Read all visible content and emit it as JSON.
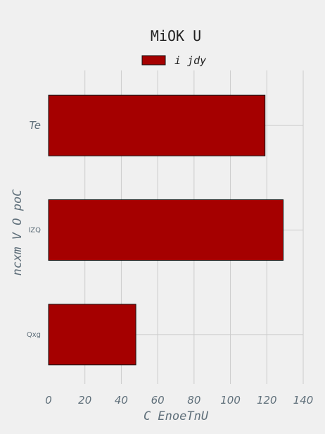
{
  "chart_data": {
    "type": "bar",
    "orientation": "horizontal",
    "title": "MiOK U",
    "xlabel": "C EnoeTnU",
    "ylabel": "ncxm V O poC",
    "categories": [
      "Te",
      "IZQ",
      "Qxg"
    ],
    "series": [
      {
        "name": "i jdy",
        "values": [
          119,
          129,
          48
        ],
        "color": "#a50000"
      }
    ],
    "xlim": [
      0,
      140
    ],
    "xticks": [
      "0",
      "20",
      "40",
      "60",
      "80",
      "100",
      "120",
      "140"
    ],
    "grid": true,
    "legend_position": "top-center",
    "colors": {
      "background": "#f0f0f0",
      "bar": "#a50000",
      "grid": "#cbcbcb",
      "axis_text": "#5f6f7a",
      "title_text": "#222222"
    }
  }
}
